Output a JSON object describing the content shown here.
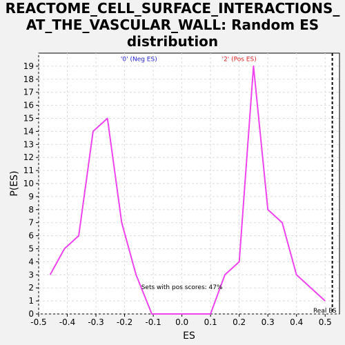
{
  "chart_data": {
    "type": "line",
    "title": "REACTOME_CELL_SURFACE_INTERACTIONS_AT_THE_VASCULAR_WALL: Random ES distribution",
    "title_lines": [
      "REACTOME_CELL_SURFACE_INTERACTIONS_",
      "AT_THE_VASCULAR_WALL: Random ES",
      "distribution"
    ],
    "xlabel": "ES",
    "ylabel": "P(ES)",
    "xlim": [
      -0.5,
      0.55
    ],
    "ylim": [
      0,
      20
    ],
    "x_ticks": [
      -0.5,
      -0.4,
      -0.3,
      -0.2,
      -0.1,
      0.0,
      0.1,
      0.2,
      0.3,
      0.4,
      0.5
    ],
    "x_tick_labels": [
      "-0.5",
      "-0.4",
      "-0.3",
      "-0.2",
      "-0.1",
      "0.0",
      "0.1",
      "0.2",
      "0.3",
      "0.4",
      "0.5"
    ],
    "y_ticks": [
      0,
      1,
      2,
      3,
      4,
      5,
      6,
      7,
      8,
      9,
      10,
      11,
      12,
      13,
      14,
      15,
      16,
      17,
      18,
      19
    ],
    "grid": true,
    "series": [
      {
        "color": "#ee44ee",
        "x": [
          -0.46,
          -0.41,
          -0.36,
          -0.31,
          -0.26,
          -0.21,
          -0.16,
          -0.105,
          -0.05,
          0.0,
          0.05,
          0.1,
          0.15,
          0.2,
          0.25,
          0.3,
          0.35,
          0.4,
          0.45,
          0.5
        ],
        "y": [
          3,
          5,
          6,
          14,
          15,
          7,
          3,
          0,
          0,
          0,
          0,
          0,
          3,
          4,
          19,
          8,
          7,
          3,
          2,
          1
        ]
      }
    ],
    "real_es": {
      "x": 0.525,
      "label": "Real ES",
      "color": "#000000"
    },
    "annotations": [
      {
        "text": "'0' (Neg ES)",
        "color": "#2222cc",
        "x": -0.15,
        "y": 19.4
      },
      {
        "text": "'2' (Pos ES)",
        "color": "#dd2222",
        "x": 0.2,
        "y": 19.4
      },
      {
        "text": "Sets with pos scores: 47%",
        "color": "#000000",
        "x": 0.0,
        "y": 1.9
      }
    ]
  }
}
